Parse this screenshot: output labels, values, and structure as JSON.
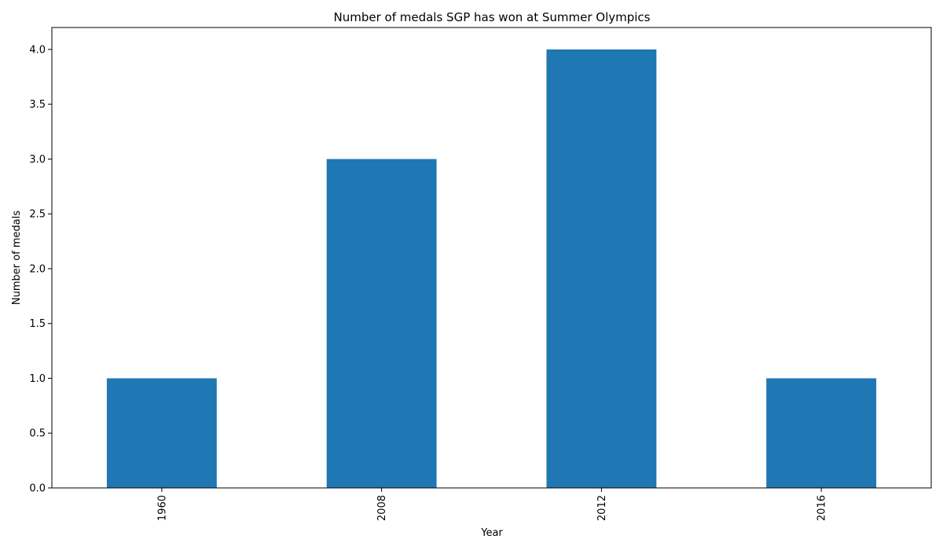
{
  "chart_data": {
    "type": "bar",
    "title": "Number of medals SGP has won at Summer Olympics",
    "xlabel": "Year",
    "ylabel": "Number of medals",
    "categories": [
      "1960",
      "2008",
      "2012",
      "2016"
    ],
    "values": [
      1,
      3,
      4,
      1
    ],
    "ylim": [
      0,
      4.2
    ],
    "yticks": [
      0.0,
      0.5,
      1.0,
      1.5,
      2.0,
      2.5,
      3.0,
      3.5,
      4.0
    ],
    "ytick_labels": [
      "0.0",
      "0.5",
      "1.0",
      "1.5",
      "2.0",
      "2.5",
      "3.0",
      "3.5",
      "4.0"
    ],
    "xtick_rotation": "vertical",
    "grid": false,
    "legend": "none",
    "bar_color": "#1f77b4"
  }
}
